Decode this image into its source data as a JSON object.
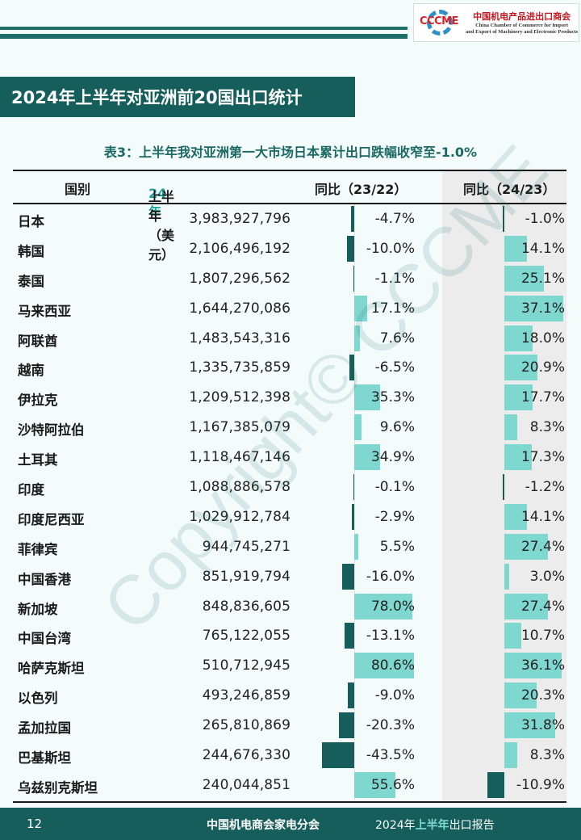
{
  "header": {
    "logo_mark": "CCCME",
    "logo_cn": "中国机电产品进出口商会",
    "logo_en_line1": "China Chamber of Commerce for Import",
    "logo_en_line2": "and Export of Machinery and Electronic Products"
  },
  "page_title": "2024年上半年对亚洲前20国出口统计",
  "table_title": "表3：上半年我对亚洲第一大市场日本累计出口跌幅收窄至-1.0%",
  "table": {
    "col_country": "国别",
    "col_value_prefix": "24年",
    "col_value_suffix": "上半年（美元）",
    "col_yoy1": "同比（23/22）",
    "col_yoy2": "同比（24/23）",
    "rows": [
      {
        "name": "日本",
        "value": "3,983,927,796",
        "yoy1": "-4.7%",
        "yoy1_num": -4.7,
        "yoy2": "-1.0%",
        "yoy2_num": -1.0
      },
      {
        "name": "韩国",
        "value": "2,106,496,192",
        "yoy1": "-10.0%",
        "yoy1_num": -10.0,
        "yoy2": "14.1%",
        "yoy2_num": 14.1
      },
      {
        "name": "泰国",
        "value": "1,807,296,562",
        "yoy1": "-1.1%",
        "yoy1_num": -1.1,
        "yoy2": "25.1%",
        "yoy2_num": 25.1
      },
      {
        "name": "马来西亚",
        "value": "1,644,270,086",
        "yoy1": "17.1%",
        "yoy1_num": 17.1,
        "yoy2": "37.1%",
        "yoy2_num": 37.1
      },
      {
        "name": "阿联酋",
        "value": "1,483,543,316",
        "yoy1": "7.6%",
        "yoy1_num": 7.6,
        "yoy2": "18.0%",
        "yoy2_num": 18.0
      },
      {
        "name": "越南",
        "value": "1,335,735,859",
        "yoy1": "-6.5%",
        "yoy1_num": -6.5,
        "yoy2": "20.9%",
        "yoy2_num": 20.9
      },
      {
        "name": "伊拉克",
        "value": "1,209,512,398",
        "yoy1": "35.3%",
        "yoy1_num": 35.3,
        "yoy2": "17.7%",
        "yoy2_num": 17.7
      },
      {
        "name": "沙特阿拉伯",
        "value": "1,167,385,079",
        "yoy1": "9.6%",
        "yoy1_num": 9.6,
        "yoy2": "8.3%",
        "yoy2_num": 8.3
      },
      {
        "name": "土耳其",
        "value": "1,118,467,146",
        "yoy1": "34.9%",
        "yoy1_num": 34.9,
        "yoy2": "17.3%",
        "yoy2_num": 17.3
      },
      {
        "name": "印度",
        "value": "1,088,886,578",
        "yoy1": "-0.1%",
        "yoy1_num": -0.1,
        "yoy2": "-1.2%",
        "yoy2_num": -1.2
      },
      {
        "name": "印度尼西亚",
        "value": "1,029,912,784",
        "yoy1": "-2.9%",
        "yoy1_num": -2.9,
        "yoy2": "14.1%",
        "yoy2_num": 14.1
      },
      {
        "name": "菲律宾",
        "value": "944,745,271",
        "yoy1": "5.5%",
        "yoy1_num": 5.5,
        "yoy2": "27.4%",
        "yoy2_num": 27.4
      },
      {
        "name": "中国香港",
        "value": "851,919,794",
        "yoy1": "-16.0%",
        "yoy1_num": -16.0,
        "yoy2": "3.0%",
        "yoy2_num": 3.0
      },
      {
        "name": "新加坡",
        "value": "848,836,605",
        "yoy1": "78.0%",
        "yoy1_num": 78.0,
        "yoy2": "27.4%",
        "yoy2_num": 27.4
      },
      {
        "name": "中国台湾",
        "value": "765,122,055",
        "yoy1": "-13.1%",
        "yoy1_num": -13.1,
        "yoy2": "10.7%",
        "yoy2_num": 10.7
      },
      {
        "name": "哈萨克斯坦",
        "value": "510,712,945",
        "yoy1": "80.6%",
        "yoy1_num": 80.6,
        "yoy2": "36.1%",
        "yoy2_num": 36.1
      },
      {
        "name": "以色列",
        "value": "493,246,859",
        "yoy1": "-9.0%",
        "yoy1_num": -9.0,
        "yoy2": "20.3%",
        "yoy2_num": 20.3
      },
      {
        "name": "孟加拉国",
        "value": "265,810,869",
        "yoy1": "-20.3%",
        "yoy1_num": -20.3,
        "yoy2": "31.8%",
        "yoy2_num": 31.8
      },
      {
        "name": "巴基斯坦",
        "value": "244,676,330",
        "yoy1": "-43.5%",
        "yoy1_num": -43.5,
        "yoy2": "8.3%",
        "yoy2_num": 8.3
      },
      {
        "name": "乌兹别克斯坦",
        "value": "240,044,851",
        "yoy1": "55.6%",
        "yoy1_num": 55.6,
        "yoy2": "-10.9%",
        "yoy2_num": -10.9
      }
    ]
  },
  "watermark": "Copyright© CCCME",
  "footer": {
    "page_number": "12",
    "org": "中国机电商会家电分会",
    "report_prefix": "2024年",
    "report_accent": "上半年",
    "report_suffix": "出口报告"
  },
  "colors": {
    "brand_dark": "#155e5b",
    "bar_positive": "#7fd8d0",
    "bar_negative": "#155e5b"
  }
}
